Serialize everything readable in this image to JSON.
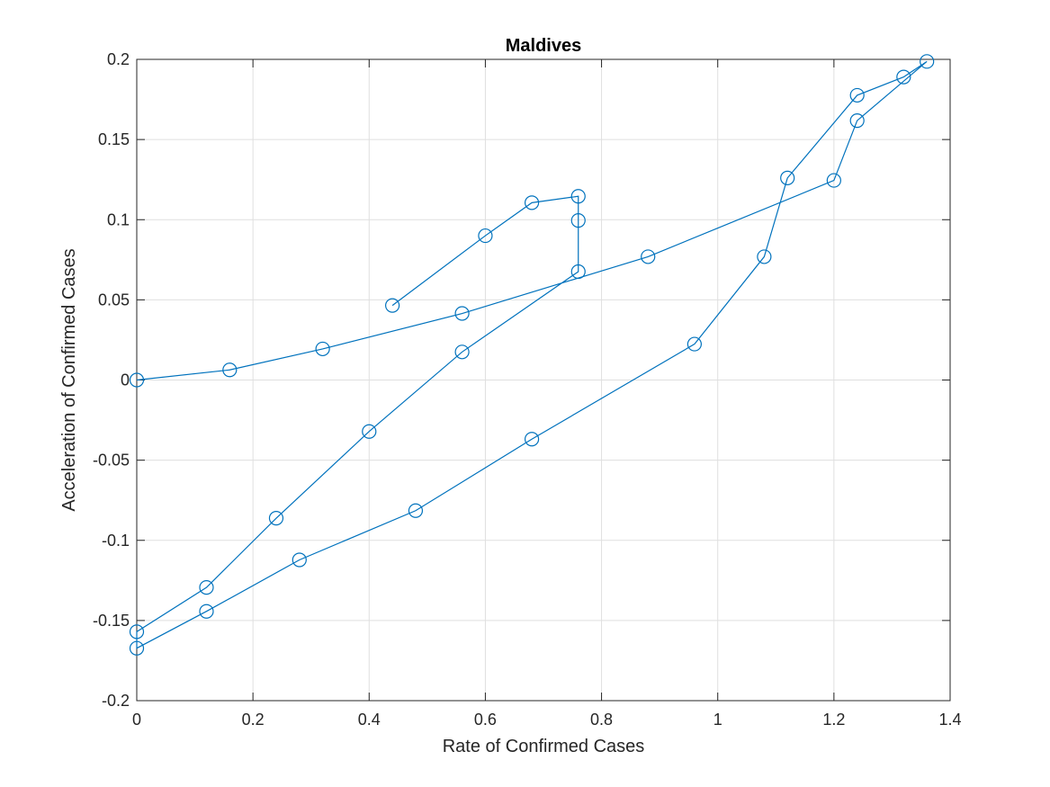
{
  "chart_data": {
    "type": "line",
    "title": "Maldives",
    "xlabel": "Rate of Confirmed Cases",
    "ylabel": "Acceleration of Confirmed Cases",
    "xlim": [
      0,
      1.4
    ],
    "ylim": [
      -0.2,
      0.2
    ],
    "xticks": [
      0,
      0.2,
      0.4,
      0.6,
      0.8,
      1,
      1.2,
      1.4
    ],
    "xtick_labels": [
      "0",
      "0.2",
      "0.4",
      "0.6",
      "0.8",
      "1",
      "1.2",
      "1.4"
    ],
    "yticks": [
      -0.2,
      -0.15,
      -0.1,
      -0.05,
      0,
      0.05,
      0.1,
      0.15,
      0.2
    ],
    "ytick_labels": [
      "-0.2",
      "-0.15",
      "-0.1",
      "-0.05",
      "0",
      "0.05",
      "0.1",
      "0.15",
      "0.2"
    ],
    "grid": true,
    "box": true,
    "marker": "circle",
    "color": "#0072bd",
    "series": [
      {
        "x": [
          0,
          0.16,
          0.32,
          0.56,
          0.88,
          1.2,
          1.24,
          1.36,
          1.32,
          1.24,
          1.12,
          1.08,
          0.96,
          0.68,
          0.48,
          0.28,
          0.12,
          0,
          0,
          0.12,
          0.24,
          0.4,
          0.56,
          0.76,
          0.76,
          0.76,
          0.68,
          0.6,
          0.44
        ],
        "y": [
          0,
          0.0063,
          0.0194,
          0.0415,
          0.0769,
          0.1245,
          0.1618,
          0.1987,
          0.189,
          0.1776,
          0.126,
          0.0769,
          0.0224,
          -0.0369,
          -0.0815,
          -0.1122,
          -0.1443,
          -0.1673,
          -0.157,
          -0.1294,
          -0.0862,
          -0.0321,
          0.0175,
          0.0676,
          0.0995,
          0.1146,
          0.1106,
          0.09,
          0.0465
        ]
      }
    ]
  }
}
